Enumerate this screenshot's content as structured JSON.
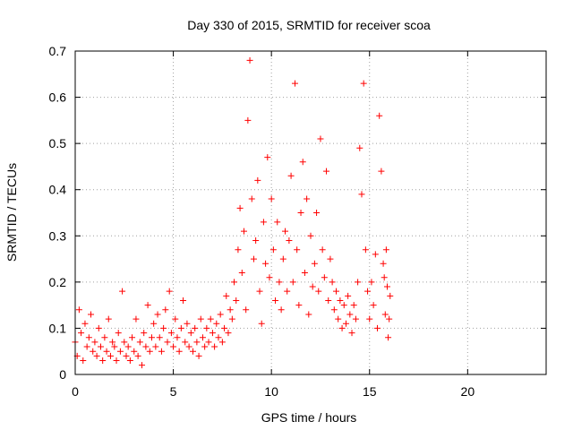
{
  "chart_data": {
    "type": "scatter",
    "title": "Day 330 of 2015, SRMTID for receiver scoa",
    "xlabel": "GPS time / hours",
    "ylabel": "SRMTID / TECUs",
    "xlim": [
      0,
      24
    ],
    "ylim": [
      0,
      0.7
    ],
    "xticks": [
      0,
      5,
      10,
      15,
      20
    ],
    "yticks": [
      0,
      0.1,
      0.2,
      0.3,
      0.4,
      0.5,
      0.6,
      0.7
    ],
    "grid": true,
    "marker": "+",
    "color": "#ff0000",
    "series": [
      {
        "name": "SRMTID",
        "points": [
          [
            0.0,
            0.07
          ],
          [
            0.1,
            0.04
          ],
          [
            0.2,
            0.14
          ],
          [
            0.3,
            0.09
          ],
          [
            0.4,
            0.03
          ],
          [
            0.5,
            0.11
          ],
          [
            0.6,
            0.06
          ],
          [
            0.7,
            0.08
          ],
          [
            0.8,
            0.13
          ],
          [
            0.9,
            0.05
          ],
          [
            1.0,
            0.07
          ],
          [
            1.1,
            0.04
          ],
          [
            1.2,
            0.1
          ],
          [
            1.3,
            0.06
          ],
          [
            1.4,
            0.03
          ],
          [
            1.5,
            0.08
          ],
          [
            1.6,
            0.05
          ],
          [
            1.7,
            0.12
          ],
          [
            1.8,
            0.04
          ],
          [
            1.9,
            0.07
          ],
          [
            2.0,
            0.06
          ],
          [
            2.1,
            0.03
          ],
          [
            2.2,
            0.09
          ],
          [
            2.3,
            0.05
          ],
          [
            2.4,
            0.18
          ],
          [
            2.5,
            0.07
          ],
          [
            2.6,
            0.04
          ],
          [
            2.7,
            0.06
          ],
          [
            2.8,
            0.03
          ],
          [
            2.9,
            0.08
          ],
          [
            3.0,
            0.05
          ],
          [
            3.1,
            0.12
          ],
          [
            3.2,
            0.04
          ],
          [
            3.3,
            0.07
          ],
          [
            3.4,
            0.02
          ],
          [
            3.5,
            0.09
          ],
          [
            3.6,
            0.06
          ],
          [
            3.7,
            0.15
          ],
          [
            3.8,
            0.05
          ],
          [
            3.9,
            0.08
          ],
          [
            4.0,
            0.11
          ],
          [
            4.1,
            0.06
          ],
          [
            4.2,
            0.13
          ],
          [
            4.3,
            0.08
          ],
          [
            4.4,
            0.05
          ],
          [
            4.5,
            0.1
          ],
          [
            4.6,
            0.14
          ],
          [
            4.7,
            0.07
          ],
          [
            4.8,
            0.18
          ],
          [
            4.9,
            0.09
          ],
          [
            5.0,
            0.06
          ],
          [
            5.1,
            0.12
          ],
          [
            5.2,
            0.08
          ],
          [
            5.3,
            0.05
          ],
          [
            5.4,
            0.1
          ],
          [
            5.5,
            0.16
          ],
          [
            5.6,
            0.07
          ],
          [
            5.7,
            0.11
          ],
          [
            5.8,
            0.06
          ],
          [
            5.9,
            0.09
          ],
          [
            6.0,
            0.05
          ],
          [
            6.1,
            0.1
          ],
          [
            6.2,
            0.07
          ],
          [
            6.3,
            0.04
          ],
          [
            6.4,
            0.12
          ],
          [
            6.5,
            0.08
          ],
          [
            6.6,
            0.06
          ],
          [
            6.7,
            0.1
          ],
          [
            6.8,
            0.07
          ],
          [
            6.9,
            0.12
          ],
          [
            7.0,
            0.09
          ],
          [
            7.1,
            0.06
          ],
          [
            7.2,
            0.11
          ],
          [
            7.3,
            0.08
          ],
          [
            7.4,
            0.13
          ],
          [
            7.5,
            0.07
          ],
          [
            7.6,
            0.1
          ],
          [
            7.7,
            0.17
          ],
          [
            7.8,
            0.09
          ],
          [
            7.9,
            0.14
          ],
          [
            8.0,
            0.12
          ],
          [
            8.1,
            0.2
          ],
          [
            8.2,
            0.16
          ],
          [
            8.3,
            0.27
          ],
          [
            8.4,
            0.36
          ],
          [
            8.5,
            0.22
          ],
          [
            8.6,
            0.31
          ],
          [
            8.7,
            0.14
          ],
          [
            8.8,
            0.55
          ],
          [
            8.9,
            0.68
          ],
          [
            9.0,
            0.38
          ],
          [
            9.1,
            0.25
          ],
          [
            9.2,
            0.29
          ],
          [
            9.3,
            0.42
          ],
          [
            9.4,
            0.18
          ],
          [
            9.5,
            0.11
          ],
          [
            9.6,
            0.33
          ],
          [
            9.7,
            0.24
          ],
          [
            9.8,
            0.47
          ],
          [
            9.9,
            0.21
          ],
          [
            10.0,
            0.38
          ],
          [
            10.1,
            0.27
          ],
          [
            10.2,
            0.16
          ],
          [
            10.3,
            0.33
          ],
          [
            10.4,
            0.2
          ],
          [
            10.5,
            0.14
          ],
          [
            10.6,
            0.25
          ],
          [
            10.7,
            0.31
          ],
          [
            10.8,
            0.18
          ],
          [
            10.9,
            0.29
          ],
          [
            11.0,
            0.43
          ],
          [
            11.1,
            0.2
          ],
          [
            11.2,
            0.63
          ],
          [
            11.3,
            0.27
          ],
          [
            11.4,
            0.15
          ],
          [
            11.5,
            0.35
          ],
          [
            11.6,
            0.46
          ],
          [
            11.7,
            0.22
          ],
          [
            11.8,
            0.38
          ],
          [
            11.9,
            0.13
          ],
          [
            12.0,
            0.3
          ],
          [
            12.1,
            0.19
          ],
          [
            12.2,
            0.24
          ],
          [
            12.3,
            0.35
          ],
          [
            12.4,
            0.18
          ],
          [
            12.5,
            0.51
          ],
          [
            12.6,
            0.27
          ],
          [
            12.7,
            0.21
          ],
          [
            12.8,
            0.44
          ],
          [
            12.9,
            0.16
          ],
          [
            13.0,
            0.25
          ],
          [
            13.1,
            0.2
          ],
          [
            13.2,
            0.14
          ],
          [
            13.3,
            0.18
          ],
          [
            13.4,
            0.12
          ],
          [
            13.5,
            0.16
          ],
          [
            13.6,
            0.1
          ],
          [
            13.7,
            0.15
          ],
          [
            13.8,
            0.11
          ],
          [
            13.9,
            0.17
          ],
          [
            14.0,
            0.13
          ],
          [
            14.1,
            0.09
          ],
          [
            14.2,
            0.15
          ],
          [
            14.3,
            0.12
          ],
          [
            14.4,
            0.2
          ],
          [
            14.5,
            0.49
          ],
          [
            14.6,
            0.39
          ],
          [
            14.7,
            0.63
          ],
          [
            14.8,
            0.27
          ],
          [
            14.9,
            0.18
          ],
          [
            15.0,
            0.12
          ],
          [
            15.1,
            0.2
          ],
          [
            15.2,
            0.15
          ],
          [
            15.3,
            0.26
          ],
          [
            15.4,
            0.1
          ],
          [
            15.5,
            0.56
          ],
          [
            15.6,
            0.44
          ],
          [
            15.7,
            0.24
          ],
          [
            15.8,
            0.13
          ],
          [
            15.9,
            0.19
          ],
          [
            16.0,
            0.12
          ],
          [
            16.05,
            0.17
          ],
          [
            15.95,
            0.08
          ],
          [
            15.85,
            0.27
          ],
          [
            15.75,
            0.21
          ]
        ]
      }
    ]
  }
}
